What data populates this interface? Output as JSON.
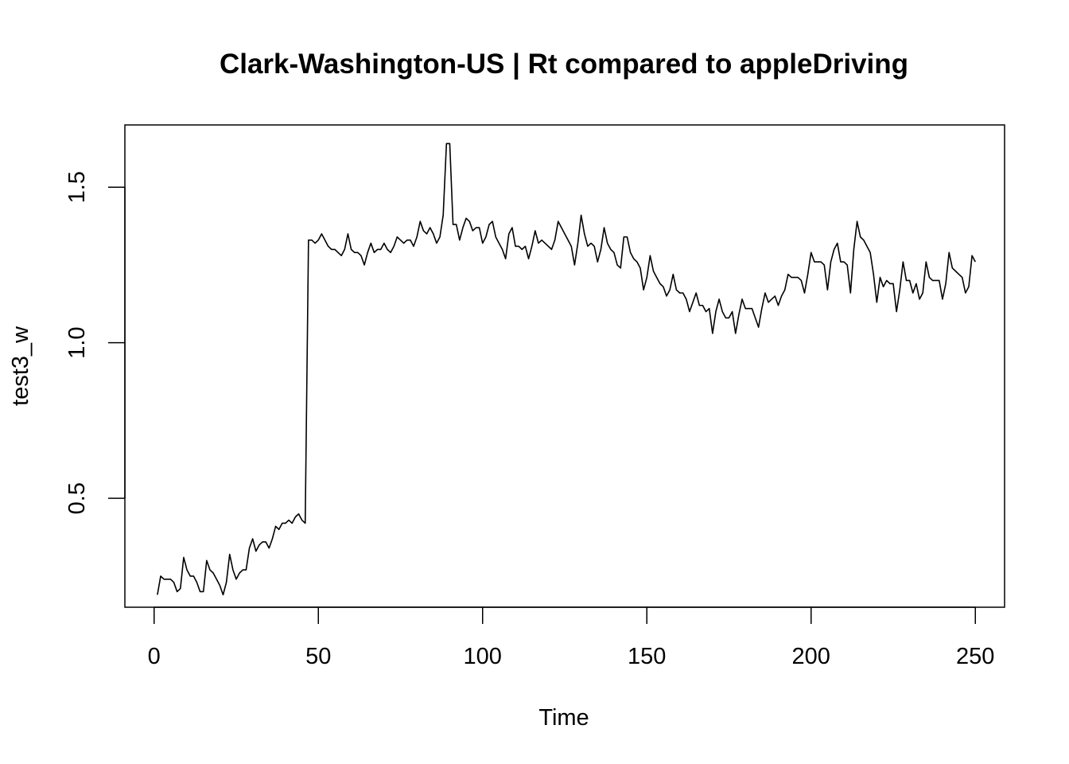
{
  "chart_data": {
    "type": "line",
    "title": "Clark-Washington-US | Rt compared to appleDriving",
    "xlabel": "Time",
    "ylabel": "test3_w",
    "xlim": [
      -8.9,
      258.9
    ],
    "ylim": [
      0.15,
      1.7
    ],
    "xticks": [
      0,
      50,
      100,
      150,
      200,
      250
    ],
    "yticks": [
      0.5,
      1.0,
      1.5
    ],
    "xtick_labels": [
      "0",
      "50",
      "100",
      "150",
      "200",
      "250"
    ],
    "ytick_labels": [
      "0.5",
      "1.0",
      "1.5"
    ],
    "grid": false,
    "line_color": "#000000",
    "series": [
      {
        "x_start": 1,
        "values": [
          0.19,
          0.25,
          0.24,
          0.24,
          0.24,
          0.23,
          0.2,
          0.21,
          0.31,
          0.27,
          0.25,
          0.25,
          0.23,
          0.2,
          0.2,
          0.3,
          0.27,
          0.26,
          0.24,
          0.22,
          0.19,
          0.23,
          0.32,
          0.27,
          0.24,
          0.26,
          0.27,
          0.27,
          0.34,
          0.37,
          0.33,
          0.35,
          0.36,
          0.36,
          0.34,
          0.37,
          0.41,
          0.4,
          0.42,
          0.42,
          0.43,
          0.42,
          0.44,
          0.45,
          0.43,
          0.42,
          1.33,
          1.33,
          1.32,
          1.33,
          1.35,
          1.33,
          1.31,
          1.3,
          1.3,
          1.29,
          1.28,
          1.3,
          1.35,
          1.3,
          1.29,
          1.29,
          1.28,
          1.25,
          1.29,
          1.32,
          1.29,
          1.3,
          1.3,
          1.32,
          1.3,
          1.29,
          1.31,
          1.34,
          1.33,
          1.32,
          1.33,
          1.33,
          1.31,
          1.34,
          1.39,
          1.36,
          1.35,
          1.37,
          1.35,
          1.32,
          1.34,
          1.41,
          1.64,
          1.64,
          1.38,
          1.38,
          1.33,
          1.37,
          1.4,
          1.39,
          1.36,
          1.37,
          1.37,
          1.32,
          1.34,
          1.38,
          1.39,
          1.34,
          1.32,
          1.3,
          1.27,
          1.35,
          1.37,
          1.31,
          1.31,
          1.3,
          1.31,
          1.27,
          1.31,
          1.36,
          1.32,
          1.33,
          1.32,
          1.31,
          1.3,
          1.33,
          1.39,
          1.37,
          1.35,
          1.33,
          1.31,
          1.25,
          1.32,
          1.41,
          1.35,
          1.31,
          1.32,
          1.31,
          1.26,
          1.3,
          1.37,
          1.32,
          1.3,
          1.29,
          1.25,
          1.24,
          1.34,
          1.34,
          1.29,
          1.27,
          1.26,
          1.24,
          1.17,
          1.21,
          1.28,
          1.23,
          1.21,
          1.19,
          1.18,
          1.15,
          1.17,
          1.22,
          1.17,
          1.16,
          1.16,
          1.14,
          1.1,
          1.13,
          1.16,
          1.12,
          1.12,
          1.1,
          1.11,
          1.03,
          1.1,
          1.14,
          1.1,
          1.08,
          1.08,
          1.1,
          1.03,
          1.09,
          1.14,
          1.11,
          1.11,
          1.11,
          1.08,
          1.05,
          1.11,
          1.16,
          1.13,
          1.14,
          1.15,
          1.12,
          1.15,
          1.17,
          1.22,
          1.21,
          1.21,
          1.21,
          1.2,
          1.16,
          1.22,
          1.29,
          1.26,
          1.26,
          1.26,
          1.25,
          1.17,
          1.26,
          1.3,
          1.32,
          1.26,
          1.26,
          1.25,
          1.16,
          1.3,
          1.39,
          1.34,
          1.33,
          1.31,
          1.29,
          1.22,
          1.13,
          1.21,
          1.18,
          1.2,
          1.19,
          1.19,
          1.1,
          1.17,
          1.26,
          1.2,
          1.2,
          1.16,
          1.19,
          1.14,
          1.16,
          1.26,
          1.21,
          1.2,
          1.2,
          1.2,
          1.14,
          1.19,
          1.29,
          1.24,
          1.23,
          1.22,
          1.21,
          1.16,
          1.18,
          1.28,
          1.26
        ]
      }
    ]
  }
}
